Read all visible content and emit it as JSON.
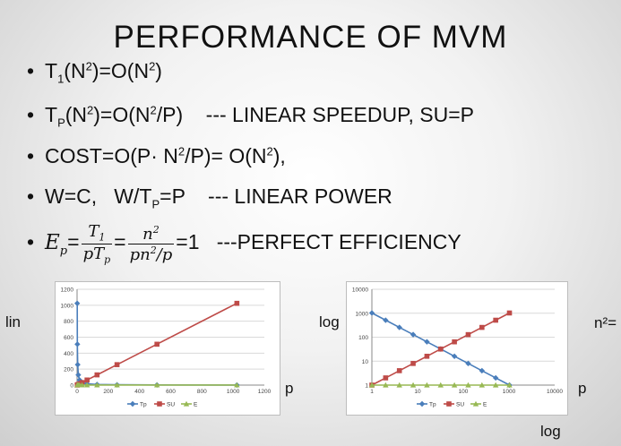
{
  "slide": {
    "title": "PERFORMANCE OF MVM",
    "bullet_glyph": "•",
    "bullets": {
      "b1": {
        "t": "T",
        "s1": "1",
        "mid": "(N",
        "e1": "2",
        "mid2": ")=O(N",
        "e2": "2",
        "end": ")"
      },
      "b2": {
        "t": "T",
        "s1": "P",
        "mid": "(N",
        "e1": "2",
        "mid2": ")=O(N",
        "e2": "2",
        "end": "/P)    --- LINEAR SPEEDUP, SU=P"
      },
      "b3": {
        "pre": "COST=O(P· N",
        "e1": "2",
        "mid": "/P)= O(N",
        "e2": "2",
        "end": "),"
      },
      "b4": {
        "pre": "W=C,   W/T",
        "s1": "P",
        "end": "=P    --- LINEAR POWER"
      },
      "b5": {
        "lhs": "E",
        "lhs_sub": "p",
        "eq": "=",
        "f1_num": "T",
        "f1_num_sub": "1",
        "f1_den": "pT",
        "f1_den_sub": "p",
        "f2_num": "n",
        "f2_num_sup": "2",
        "f2_den_a": "pn",
        "f2_den_sup": "2",
        "f2_den_b": "/p",
        "end": "=1   ---PERFECT EFFICIENCY"
      }
    },
    "labels": {
      "lin": "lin",
      "log_left": "log",
      "p_left": "p",
      "p_right": "p",
      "log_bottom": "log",
      "cut_text": "n²="
    }
  },
  "chart_data": [
    {
      "type": "line",
      "x_scale": "linear",
      "y_scale": "linear",
      "xlim": [
        0,
        1200
      ],
      "ylim": [
        0,
        1200
      ],
      "x_ticks": [
        "0",
        "200",
        "400",
        "600",
        "800",
        "1000",
        "1200"
      ],
      "y_ticks": [
        "0",
        "200",
        "400",
        "600",
        "800",
        "1000",
        "1200"
      ],
      "grid": true,
      "legend": "bottom",
      "x": [
        1,
        2,
        4,
        8,
        16,
        32,
        64,
        128,
        256,
        512,
        1024
      ],
      "series": [
        {
          "name": "Tp",
          "color": "#4a7ebb",
          "marker": "diamond",
          "values": [
            1024,
            512,
            256,
            128,
            64,
            32,
            16,
            8,
            4,
            2,
            1
          ]
        },
        {
          "name": "SU",
          "color": "#be4b48",
          "marker": "square",
          "values": [
            1,
            2,
            4,
            8,
            16,
            32,
            64,
            128,
            256,
            512,
            1024
          ]
        },
        {
          "name": "E",
          "color": "#98b954",
          "marker": "triangle",
          "values": [
            1,
            1,
            1,
            1,
            1,
            1,
            1,
            1,
            1,
            1,
            1
          ]
        }
      ]
    },
    {
      "type": "line",
      "x_scale": "log",
      "y_scale": "log",
      "xlim": [
        1,
        10000
      ],
      "ylim": [
        1,
        10000
      ],
      "x_ticks": [
        "1",
        "10",
        "100",
        "1000",
        "10000"
      ],
      "y_ticks": [
        "1",
        "10",
        "100",
        "1000",
        "10000"
      ],
      "grid": true,
      "legend": "bottom",
      "x": [
        1,
        2,
        4,
        8,
        16,
        32,
        64,
        128,
        256,
        512,
        1024
      ],
      "series": [
        {
          "name": "Tp",
          "color": "#4a7ebb",
          "marker": "diamond",
          "values": [
            1024,
            512,
            256,
            128,
            64,
            32,
            16,
            8,
            4,
            2,
            1
          ]
        },
        {
          "name": "SU",
          "color": "#be4b48",
          "marker": "square",
          "values": [
            1,
            2,
            4,
            8,
            16,
            32,
            64,
            128,
            256,
            512,
            1024
          ]
        },
        {
          "name": "E",
          "color": "#98b954",
          "marker": "triangle",
          "values": [
            1,
            1,
            1,
            1,
            1,
            1,
            1,
            1,
            1,
            1,
            1
          ]
        }
      ]
    }
  ]
}
